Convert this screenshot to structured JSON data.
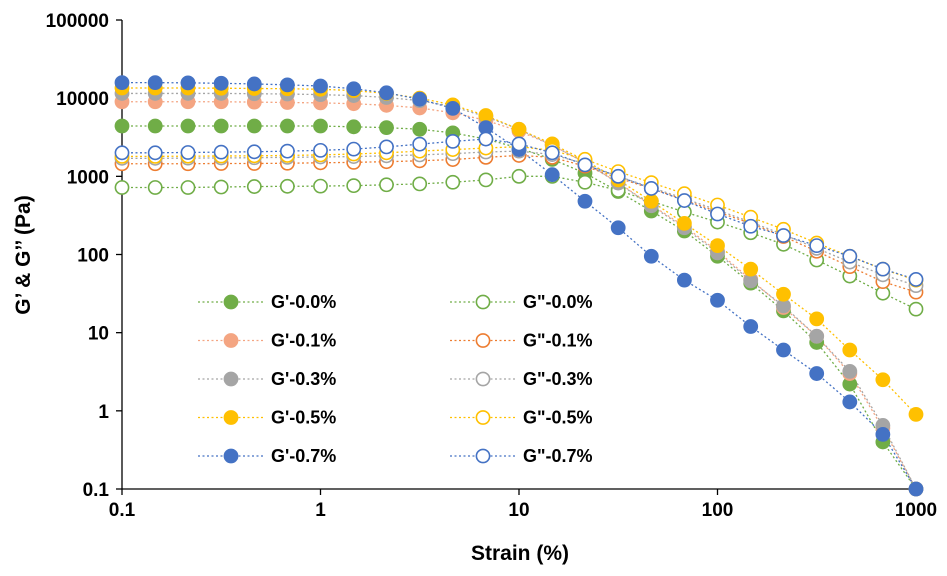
{
  "chart_data": {
    "type": "scatter",
    "xlabel": "Strain (%)",
    "ylabel": "G’ & G’’ (Pa)",
    "xscale": "log",
    "yscale": "log",
    "xlim": [
      0.1,
      1000
    ],
    "ylim": [
      0.1,
      100000
    ],
    "x_tick_labels": [
      "0.1",
      "1",
      "10",
      "100",
      "1000"
    ],
    "y_tick_labels": [
      "0.1",
      "1",
      "10",
      "100",
      "1000",
      "10000",
      "100000"
    ],
    "grid": false,
    "legend_position": "bottom-left",
    "x": [
      0.1,
      0.147,
      0.215,
      0.316,
      0.464,
      0.681,
      1,
      1.47,
      2.15,
      3.16,
      4.64,
      6.81,
      10,
      14.7,
      21.5,
      31.6,
      46.4,
      68.1,
      100,
      147,
      215,
      316,
      464,
      681,
      1000
    ],
    "series": [
      {
        "name": "G'-0.0%",
        "modulus": "G'",
        "color": "#70ad47",
        "filled": true,
        "values": [
          4400,
          4400,
          4400,
          4400,
          4400,
          4400,
          4400,
          4300,
          4200,
          4000,
          3600,
          3000,
          2300,
          1650,
          1100,
          640,
          360,
          200,
          95,
          43,
          19,
          7.5,
          2.2,
          0.4,
          0.1
        ]
      },
      {
        "name": "G\"-0.0%",
        "modulus": "G\"",
        "color": "#70ad47",
        "filled": false,
        "values": [
          720,
          720,
          720,
          730,
          740,
          745,
          750,
          760,
          780,
          800,
          840,
          900,
          1000,
          1000,
          840,
          660,
          480,
          350,
          260,
          190,
          135,
          85,
          53,
          32,
          20
        ]
      },
      {
        "name": "G'-0.1%",
        "modulus": "G'",
        "color": "#f4a582",
        "filled": true,
        "values": [
          9000,
          9000,
          9000,
          9000,
          8900,
          8800,
          8700,
          8500,
          8100,
          7500,
          6500,
          5200,
          3800,
          2500,
          1500,
          830,
          430,
          230,
          110,
          48,
          21,
          9,
          3,
          0.6,
          0.1
        ]
      },
      {
        "name": "G\"-0.1%",
        "modulus": "G\"",
        "color": "#ed7d31",
        "filled": false,
        "values": [
          1450,
          1450,
          1450,
          1460,
          1460,
          1470,
          1490,
          1510,
          1540,
          1580,
          1640,
          1750,
          1850,
          1750,
          1350,
          950,
          700,
          500,
          350,
          250,
          170,
          110,
          70,
          45,
          33
        ]
      },
      {
        "name": "G'-0.3%",
        "modulus": "G'",
        "color": "#a5a5a5",
        "filled": true,
        "values": [
          11500,
          11500,
          11500,
          11500,
          11400,
          11300,
          11100,
          10800,
          10200,
          9300,
          7800,
          5800,
          4000,
          2500,
          1500,
          820,
          420,
          220,
          105,
          46,
          22,
          9,
          3.2,
          0.65,
          0.1
        ]
      },
      {
        "name": "G\"-0.3%",
        "modulus": "G\"",
        "color": "#a5a5a5",
        "filled": false,
        "values": [
          1700,
          1700,
          1710,
          1720,
          1730,
          1750,
          1770,
          1790,
          1830,
          1880,
          1950,
          2050,
          2100,
          1900,
          1450,
          1000,
          720,
          520,
          370,
          260,
          180,
          120,
          80,
          55,
          40
        ]
      },
      {
        "name": "G'-0.5%",
        "modulus": "G'",
        "color": "#ffc000",
        "filled": true,
        "values": [
          13500,
          13500,
          13500,
          13400,
          13300,
          13200,
          13000,
          12500,
          11500,
          10000,
          8200,
          6000,
          4000,
          2600,
          1600,
          900,
          480,
          250,
          130,
          65,
          31,
          15,
          6,
          2.5,
          0.9
        ]
      },
      {
        "name": "G\"-0.5%",
        "modulus": "G\"",
        "color": "#ffc000",
        "filled": false,
        "values": [
          1800,
          1800,
          1810,
          1820,
          1830,
          1850,
          1880,
          1930,
          2000,
          2100,
          2200,
          2300,
          2400,
          2150,
          1650,
          1150,
          830,
          600,
          430,
          300,
          210,
          140,
          95,
          65,
          47
        ]
      },
      {
        "name": "G'-0.7%",
        "modulus": "G'",
        "color": "#4472c4",
        "filled": true,
        "values": [
          15800,
          15800,
          15700,
          15500,
          15200,
          14800,
          14300,
          13200,
          11700,
          9700,
          7400,
          4200,
          2200,
          1050,
          480,
          220,
          95,
          47,
          26,
          12,
          6,
          3,
          1.3,
          0.5,
          0.1
        ]
      },
      {
        "name": "G\"-0.7%",
        "modulus": "G\"",
        "color": "#4472c4",
        "filled": false,
        "values": [
          2000,
          2000,
          2020,
          2040,
          2060,
          2100,
          2150,
          2230,
          2380,
          2580,
          2800,
          3000,
          2600,
          2000,
          1400,
          1000,
          700,
          490,
          330,
          230,
          175,
          130,
          95,
          65,
          48
        ]
      }
    ]
  }
}
